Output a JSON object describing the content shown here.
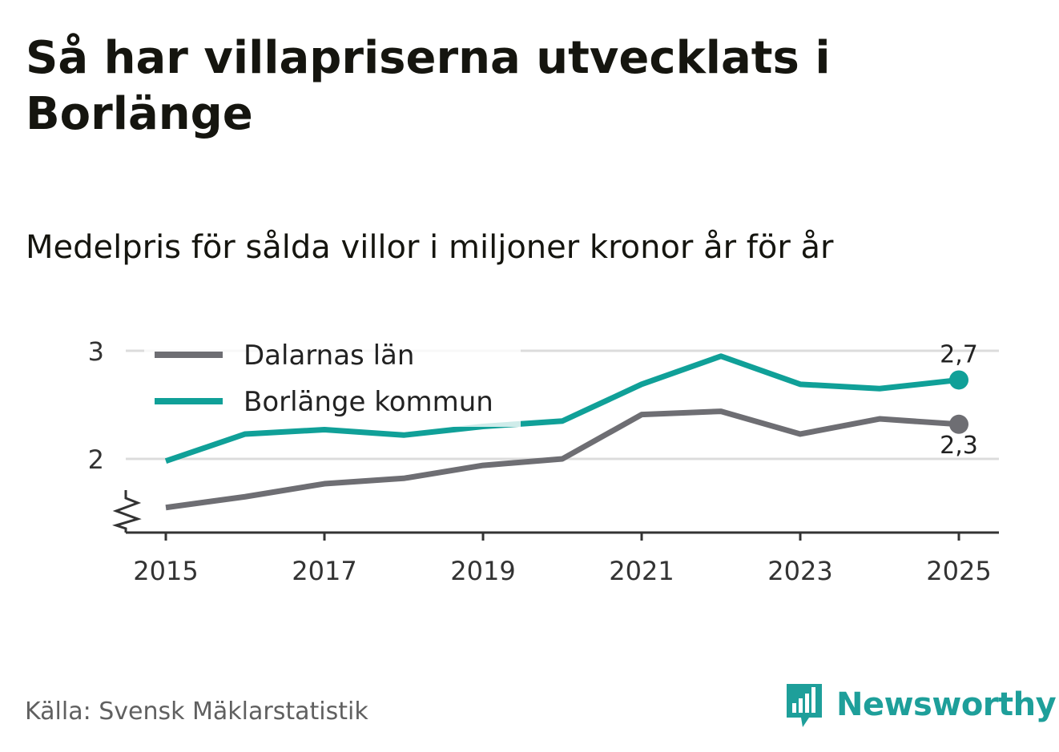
{
  "title": "Så har villapriserna utvecklats i Borlänge",
  "subtitle": "Medelpris för sålda villor i miljoner kronor år för år",
  "source": "Källa: Svensk Mäklarstatistik",
  "brand": {
    "name": "Newsworthy",
    "icon": "newsworthy-logo-icon",
    "color": "#1e9f9a"
  },
  "chart_data": {
    "type": "line",
    "title": "Så har villapriserna utvecklats i Borlänge",
    "subtitle": "Medelpris för sålda villor i miljoner kronor år för år",
    "xlabel": "",
    "ylabel": "",
    "x": [
      2015,
      2016,
      2017,
      2018,
      2019,
      2020,
      2021,
      2022,
      2023,
      2024,
      2025
    ],
    "x_tick_labels": [
      "2015",
      "2017",
      "2019",
      "2021",
      "2023",
      "2025"
    ],
    "x_tick_values": [
      2015,
      2017,
      2019,
      2021,
      2023,
      2025
    ],
    "y_tick_labels": [
      "2",
      "3"
    ],
    "y_tick_values": [
      2,
      3
    ],
    "ylim": [
      1.33,
      3.15
    ],
    "xlim": [
      2014.5,
      2025.5
    ],
    "axis_break": true,
    "grid": true,
    "legend_position": "top-left",
    "series": [
      {
        "name": "Dalarnas län",
        "color": "#6e6e73",
        "values": [
          1.55,
          1.65,
          1.77,
          1.82,
          1.94,
          2.0,
          2.41,
          2.44,
          2.23,
          2.37,
          2.32
        ],
        "end_label": "2,3"
      },
      {
        "name": "Borlänge kommun",
        "color": "#10a098",
        "values": [
          1.98,
          2.23,
          2.27,
          2.22,
          2.3,
          2.35,
          2.69,
          2.95,
          2.69,
          2.65,
          2.73
        ],
        "end_label": "2,7"
      }
    ]
  }
}
